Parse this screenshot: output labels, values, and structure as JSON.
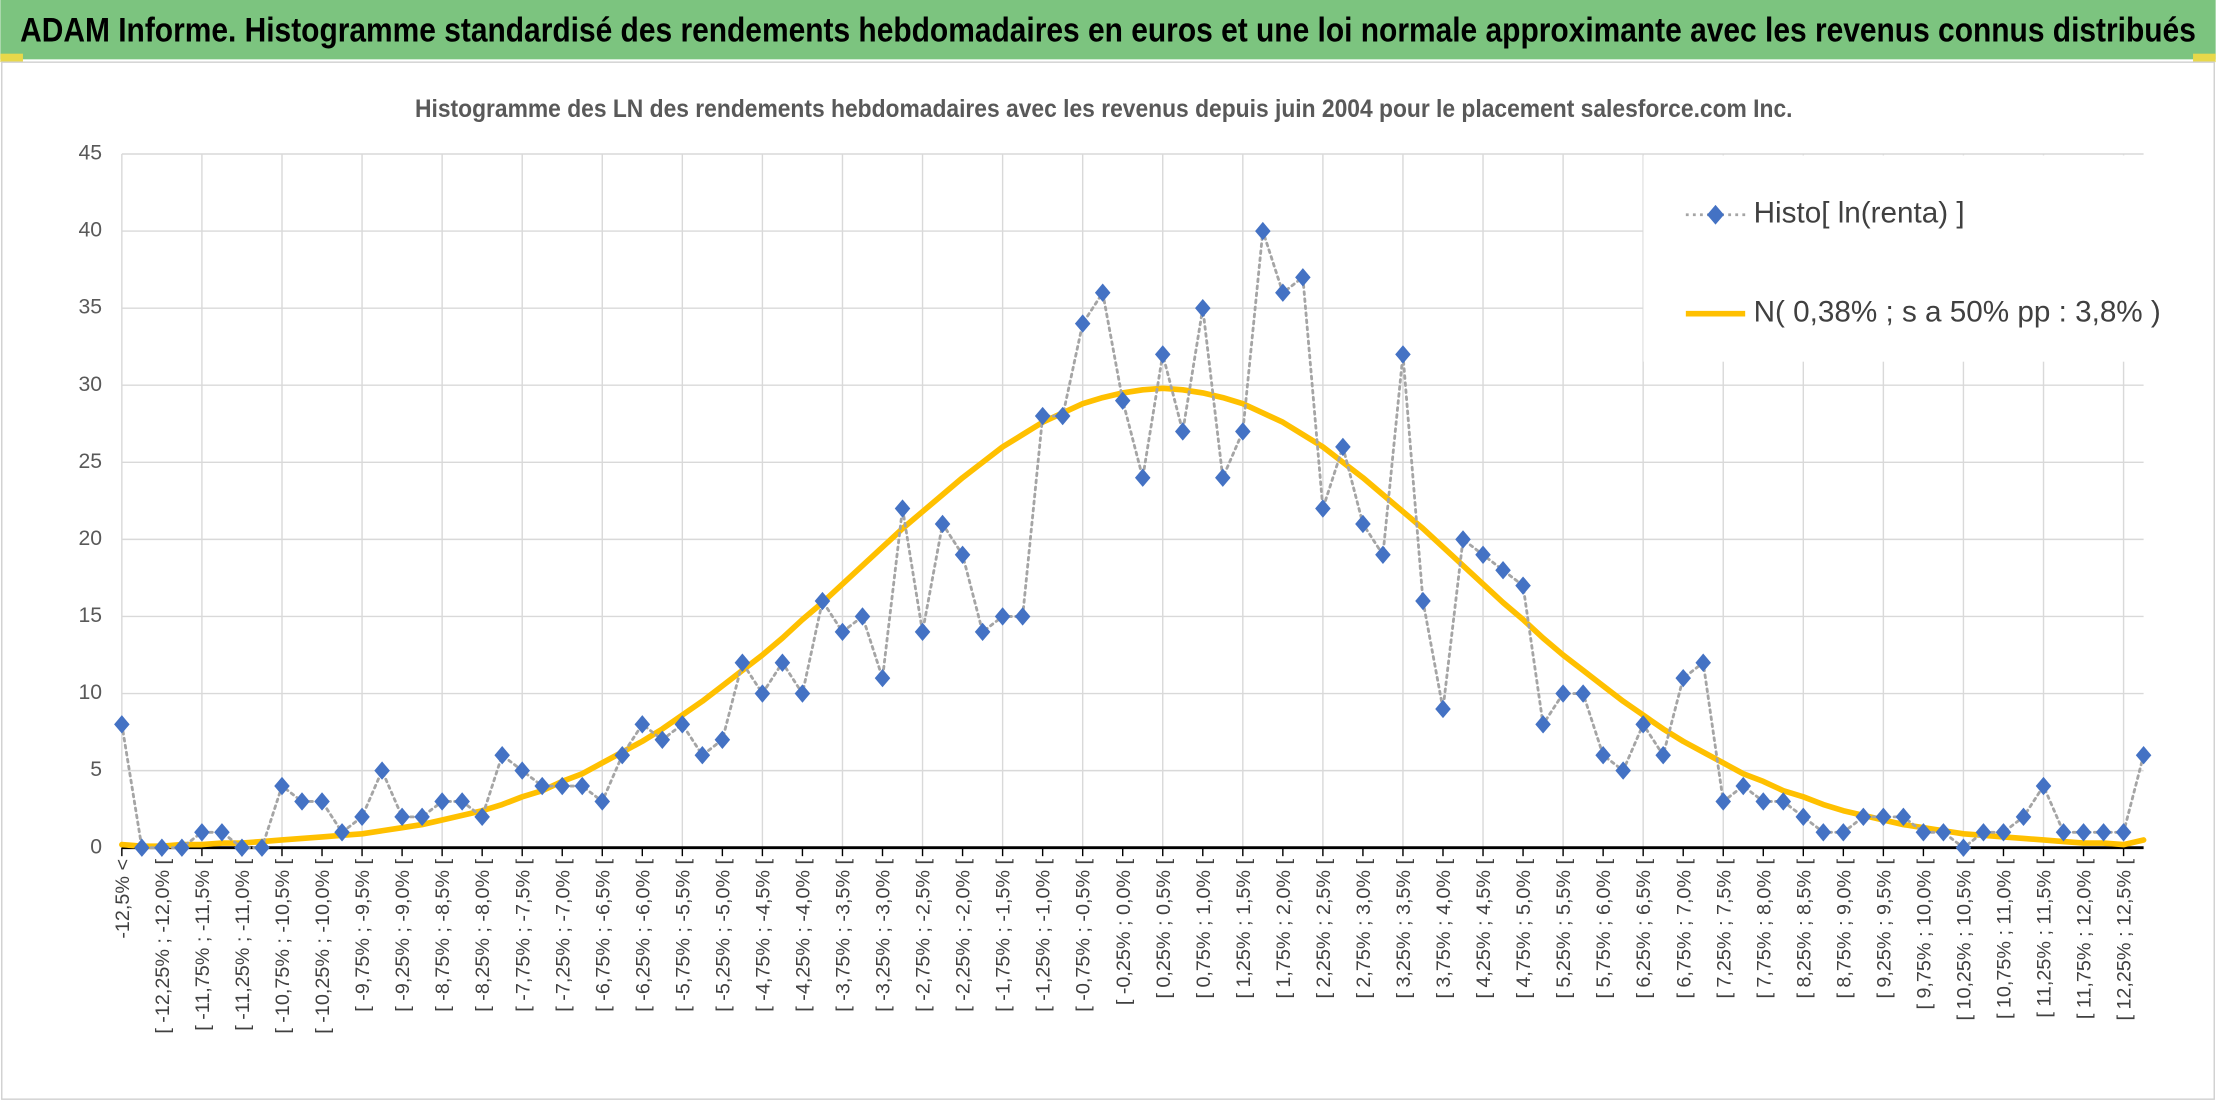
{
  "chart_data": {
    "type": "line",
    "title": "ADAM Informe. Histogramme standardisé des rendements hebdomadaires en euros et une loi normale approximante avec les revenus connus distribués",
    "subtitle": "Histogramme des LN des rendements hebdomadaires avec les revenus depuis juin 2004 pour le placement salesforce.com Inc.",
    "categories": [
      "-12,5% <",
      null,
      "[ -12,25% ; -12,0% [",
      null,
      "[ -11,75% ; -11,5% [",
      null,
      "[ -11,25% ; -11,0% [",
      null,
      "[ -10,75% ; -10,5% [",
      null,
      "[ -10,25% ; -10,0% [",
      null,
      "[ -9,75% ; -9,5% [",
      null,
      "[ -9,25% ; -9,0% [",
      null,
      "[ -8,75% ; -8,5% [",
      null,
      "[ -8,25% ; -8,0% [",
      null,
      "[ -7,75% ; -7,5% [",
      null,
      "[ -7,25% ; -7,0% [",
      null,
      "[ -6,75% ; -6,5% [",
      null,
      "[ -6,25% ; -6,0% [",
      null,
      "[ -5,75% ; -5,5% [",
      null,
      "[ -5,25% ; -5,0% [",
      null,
      "[ -4,75% ; -4,5% [",
      null,
      "[ -4,25% ; -4,0% [",
      null,
      "[ -3,75% ; -3,5% [",
      null,
      "[ -3,25% ; -3,0% [",
      null,
      "[ -2,75% ; -2,5% [",
      null,
      "[ -2,25% ; -2,0% [",
      null,
      "[ -1,75% ; -1,5% [",
      null,
      "[ -1,25% ; -1,0% [",
      null,
      "[ -0,75% ; -0,5% [",
      null,
      "[ -0,25% ; 0,0% [",
      null,
      "[ 0,25% ; 0,5% [",
      null,
      "[ 0,75% ; 1,0% [",
      null,
      "[ 1,25% ; 1,5% [",
      null,
      "[ 1,75% ; 2,0% [",
      null,
      "[ 2,25% ; 2,5% [",
      null,
      "[ 2,75% ; 3,0% [",
      null,
      "[ 3,25% ; 3,5% [",
      null,
      "[ 3,75% ; 4,0% [",
      null,
      "[ 4,25% ; 4,5% [",
      null,
      "[ 4,75% ; 5,0% [",
      null,
      "[ 5,25% ; 5,5% [",
      null,
      "[ 5,75% ; 6,0% [",
      null,
      "[ 6,25% ; 6,5% [",
      null,
      "[ 6,75% ; 7,0% [",
      null,
      "[ 7,25% ; 7,5% [",
      null,
      "[ 7,75% ; 8,0% [",
      null,
      "[ 8,25% ; 8,5% [",
      null,
      "[ 8,75% ; 9,0% [",
      null,
      "[ 9,25% ; 9,5% [",
      null,
      "[ 9,75% ; 10,0% [",
      null,
      "[ 10,25% ; 10,5% [",
      null,
      "[ 10,75% ; 11,0% [",
      null,
      "[ 11,25% ; 11,5% [",
      null,
      "[ 11,75% ; 12,0% [",
      null,
      "[ 12,25% ; 12,5% [",
      null
    ],
    "series": [
      {
        "name": "Histo[ ln(renta) ]",
        "color": "#4472c4",
        "line_color": "#a5a5a5",
        "line_style": "dotted",
        "marker": "diamond",
        "values": [
          8,
          0,
          0,
          0,
          1,
          1,
          0,
          0,
          4,
          3,
          3,
          1,
          2,
          5,
          2,
          2,
          3,
          3,
          2,
          6,
          5,
          4,
          4,
          4,
          3,
          6,
          8,
          7,
          8,
          6,
          7,
          12,
          10,
          12,
          10,
          16,
          14,
          15,
          11,
          22,
          14,
          21,
          19,
          14,
          15,
          15,
          28,
          28,
          34,
          36,
          29,
          24,
          32,
          27,
          35,
          24,
          27,
          40,
          36,
          37,
          22,
          26,
          21,
          19,
          32,
          16,
          9,
          20,
          19,
          18,
          17,
          8,
          10,
          10,
          6,
          5,
          8,
          6,
          11,
          12,
          3,
          4,
          3,
          3,
          2,
          1,
          1,
          2,
          2,
          2,
          1,
          1,
          0,
          1,
          1,
          2,
          4,
          1,
          1,
          1,
          1,
          6
        ]
      },
      {
        "name": "N( 0,38% ; s a 50% pp : 3,8% )",
        "color": "#ffc000",
        "line_style": "solid",
        "values": [
          0.2,
          0.1,
          0.1,
          0.2,
          0.2,
          0.3,
          0.3,
          0.4,
          0.5,
          0.6,
          0.7,
          0.8,
          0.9,
          1.1,
          1.3,
          1.5,
          1.8,
          2.1,
          2.4,
          2.8,
          3.3,
          3.7,
          4.3,
          4.8,
          5.5,
          6.2,
          6.9,
          7.7,
          8.6,
          9.5,
          10.5,
          11.5,
          12.5,
          13.6,
          14.8,
          15.9,
          17.1,
          18.3,
          19.5,
          20.7,
          21.8,
          22.9,
          24.0,
          25.0,
          26.0,
          26.8,
          27.6,
          28.2,
          28.8,
          29.2,
          29.5,
          29.7,
          29.8,
          29.7,
          29.5,
          29.2,
          28.8,
          28.2,
          27.6,
          26.8,
          26.0,
          25.0,
          24.0,
          22.9,
          21.8,
          20.7,
          19.5,
          18.3,
          17.1,
          15.9,
          14.8,
          13.6,
          12.5,
          11.5,
          10.5,
          9.5,
          8.6,
          7.7,
          6.9,
          6.2,
          5.5,
          4.8,
          4.3,
          3.7,
          3.3,
          2.8,
          2.4,
          2.1,
          1.8,
          1.5,
          1.3,
          1.1,
          0.9,
          0.8,
          0.7,
          0.6,
          0.5,
          0.4,
          0.3,
          0.3,
          0.2,
          0.5
        ]
      }
    ],
    "ylim": [
      0,
      45
    ],
    "yticks": [
      0,
      5,
      10,
      15,
      20,
      25,
      30,
      35,
      40,
      45
    ],
    "grid": true,
    "legend": "top-right"
  }
}
